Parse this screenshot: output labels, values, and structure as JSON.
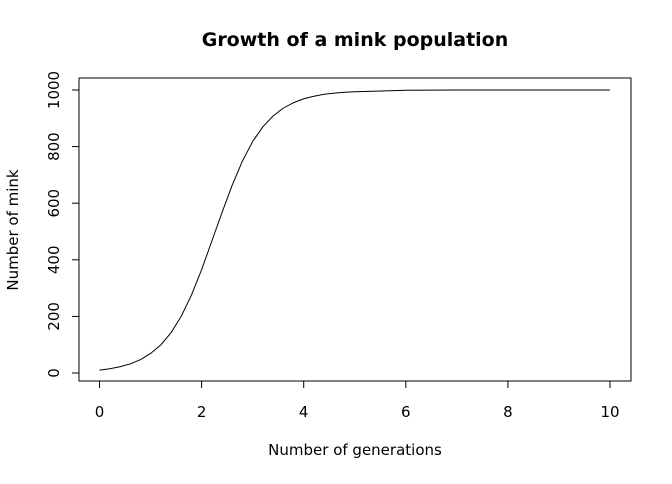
{
  "chart_data": {
    "type": "line",
    "title": "Growth of a mink population",
    "xlabel": "Number of generations",
    "ylabel": "Number of mink",
    "xlim": [
      0,
      10
    ],
    "ylim": [
      0,
      1000
    ],
    "x_ticks": [
      0,
      2,
      4,
      6,
      8,
      10
    ],
    "y_ticks": [
      0,
      200,
      400,
      600,
      800,
      1000
    ],
    "grid": false,
    "legend": "none",
    "line_color": "#000000",
    "series": [
      {
        "x": [
          0,
          0.2,
          0.4,
          0.6,
          0.8,
          1.0,
          1.2,
          1.4,
          1.6,
          1.8,
          2.0,
          2.2,
          2.4,
          2.6,
          2.8,
          3.0,
          3.2,
          3.4,
          3.6,
          3.8,
          4.0,
          4.2,
          4.4,
          4.6,
          4.8,
          5.0,
          6.0,
          7.0,
          8.0,
          9.0,
          10.0
        ],
        "y": [
          10,
          15,
          22,
          32,
          47,
          69,
          99,
          142,
          200,
          275,
          365,
          466,
          567,
          664,
          749,
          818,
          870,
          908,
          936,
          955,
          969,
          978,
          985,
          989,
          992,
          994,
          999,
          1000,
          1000,
          1000,
          1000
        ]
      }
    ]
  }
}
